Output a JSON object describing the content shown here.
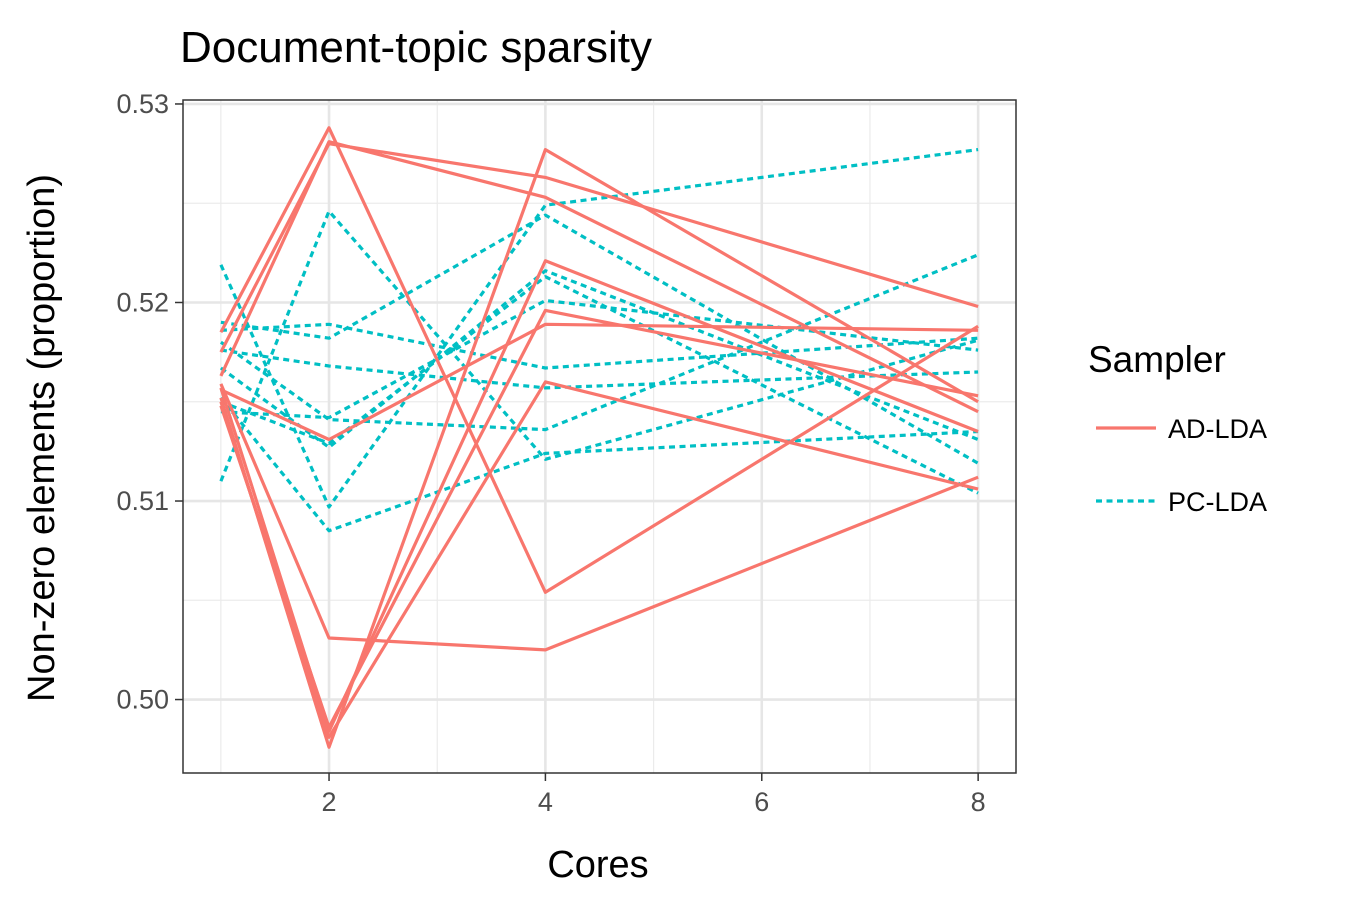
{
  "chart_data": {
    "type": "line",
    "title": "Document-topic sparsity",
    "xlabel": "Cores",
    "ylabel": "Non-zero elements (proportion)",
    "xlim": [
      0.65,
      8.35
    ],
    "ylim": [
      0.4963,
      0.5302
    ],
    "x_ticks": [
      2,
      4,
      6,
      8
    ],
    "y_ticks": [
      0.5,
      0.51,
      0.52,
      0.53
    ],
    "x_tick_labels": [
      "2",
      "4",
      "6",
      "8"
    ],
    "y_tick_labels": [
      "0.50",
      "0.51",
      "0.52",
      "0.53"
    ],
    "grid": true,
    "x": [
      1,
      2,
      4,
      8
    ],
    "legend": {
      "title": "Sampler",
      "position": "right",
      "entries": [
        {
          "label": "AD-LDA",
          "color": "#F8766D",
          "dash": "solid"
        },
        {
          "label": "PC-LDA",
          "color": "#00BFC4",
          "dash": "dotted"
        }
      ]
    },
    "series": [
      {
        "group": "AD-LDA",
        "values": [
          0.5185,
          0.5288,
          0.5054,
          0.5188
        ]
      },
      {
        "group": "AD-LDA",
        "values": [
          0.5175,
          0.528,
          0.5263,
          0.5198
        ]
      },
      {
        "group": "AD-LDA",
        "values": [
          0.5163,
          0.5281,
          0.5253,
          0.5145
        ]
      },
      {
        "group": "AD-LDA",
        "values": [
          0.5156,
          0.5131,
          0.5189,
          0.5186
        ]
      },
      {
        "group": "AD-LDA",
        "values": [
          0.5152,
          0.4976,
          0.5277,
          0.515
        ]
      },
      {
        "group": "AD-LDA",
        "values": [
          0.5157,
          0.4984,
          0.5221,
          0.5135
        ]
      },
      {
        "group": "AD-LDA",
        "values": [
          0.5148,
          0.4986,
          0.5196,
          0.5153
        ]
      },
      {
        "group": "AD-LDA",
        "values": [
          0.515,
          0.4981,
          0.516,
          0.5106
        ]
      },
      {
        "group": "AD-LDA",
        "values": [
          0.5159,
          0.5031,
          0.5025,
          0.5112
        ]
      },
      {
        "group": "PC-LDA",
        "values": [
          0.5219,
          0.5097,
          0.5249,
          0.5277
        ]
      },
      {
        "group": "PC-LDA",
        "values": [
          0.511,
          0.5246,
          0.5121,
          0.5181
        ]
      },
      {
        "group": "PC-LDA",
        "values": [
          0.518,
          0.5141,
          0.5136,
          0.5224
        ]
      },
      {
        "group": "PC-LDA",
        "values": [
          0.519,
          0.5182,
          0.5244,
          0.5119
        ]
      },
      {
        "group": "PC-LDA",
        "values": [
          0.5186,
          0.5189,
          0.5167,
          0.5182
        ]
      },
      {
        "group": "PC-LDA",
        "values": [
          0.5176,
          0.5168,
          0.5157,
          0.5165
        ]
      },
      {
        "group": "PC-LDA",
        "values": [
          0.5167,
          0.5127,
          0.5216,
          0.5131
        ]
      },
      {
        "group": "PC-LDA",
        "values": [
          0.5152,
          0.5085,
          0.5124,
          0.5135
        ]
      },
      {
        "group": "PC-LDA",
        "values": [
          0.5145,
          0.5142,
          0.5201,
          0.5176
        ]
      },
      {
        "group": "PC-LDA",
        "values": [
          0.515,
          0.5129,
          0.5213,
          0.5104
        ]
      }
    ]
  }
}
